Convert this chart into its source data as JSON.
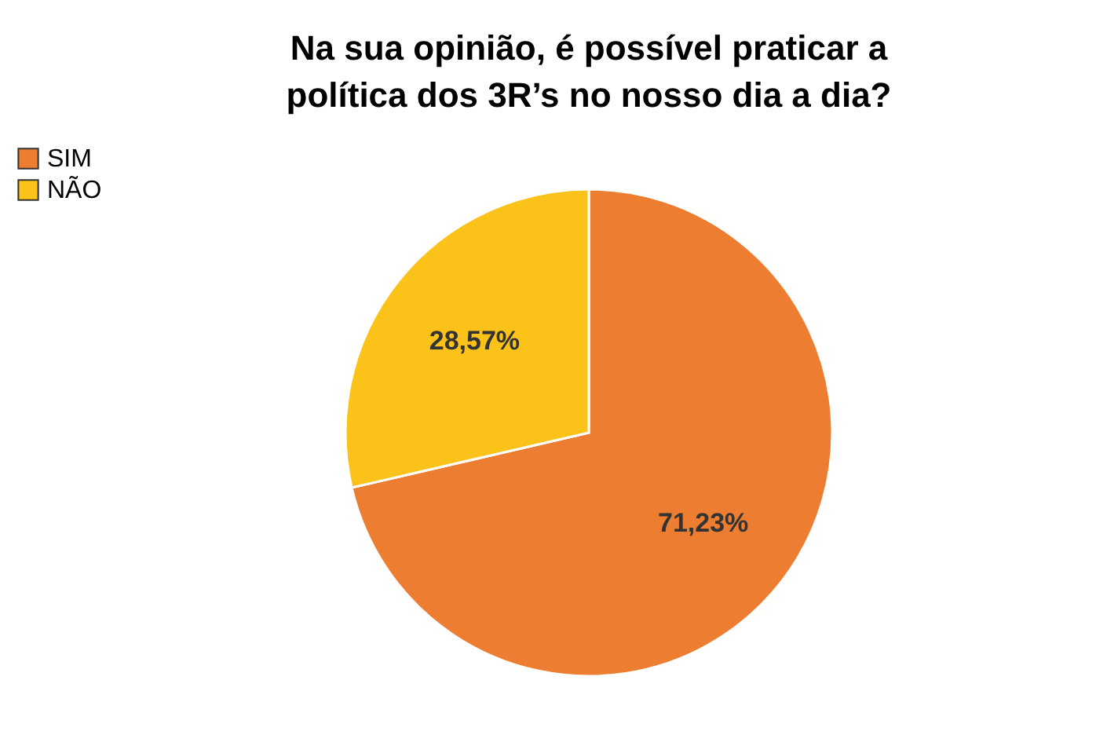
{
  "chart_data": {
    "type": "pie",
    "title": [
      "Na sua opinião, é possível praticar a",
      "política dos 3R’s no nosso dia a dia?"
    ],
    "categories": [
      "SIM",
      "NÃO"
    ],
    "values": [
      71.23,
      28.57
    ],
    "colors": [
      "#ed7d31",
      "#fbc31a"
    ],
    "value_labels": [
      "71,23%",
      "28,57%"
    ],
    "legend": "left"
  }
}
